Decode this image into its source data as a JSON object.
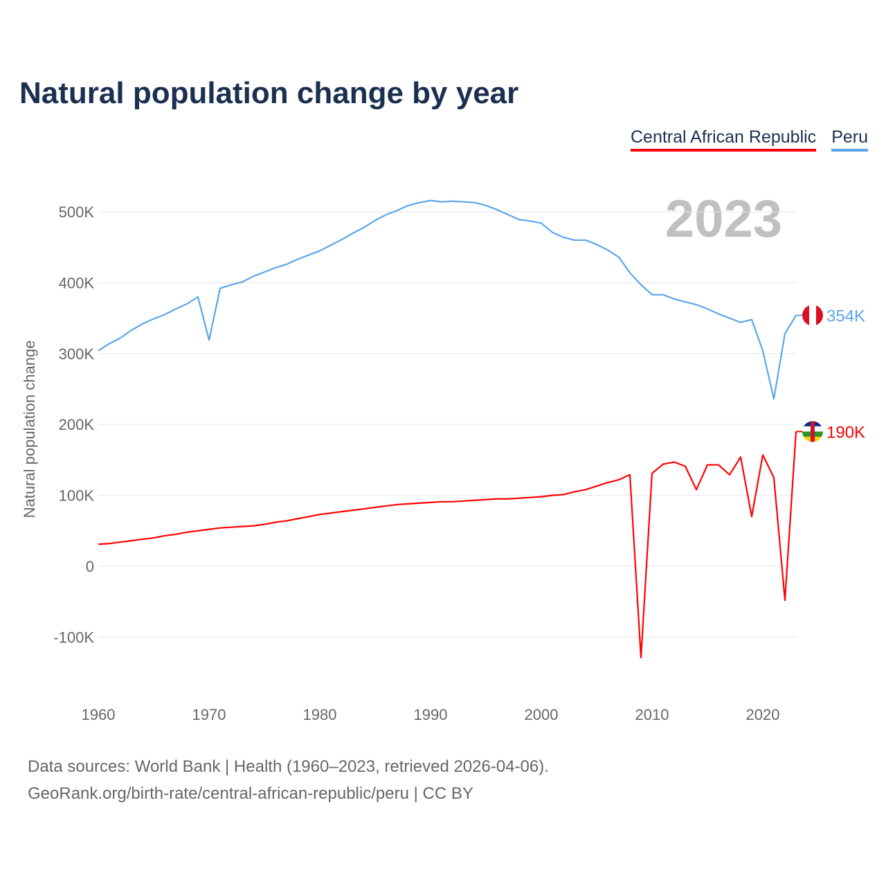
{
  "chart_data": {
    "type": "line",
    "title": "Natural population change by year",
    "ylabel": "Natural population change",
    "xlabel": "",
    "year_label": "2023",
    "xlim": [
      1960,
      2023
    ],
    "ylim": [
      -150000,
      550000
    ],
    "x_ticks": [
      1960,
      1970,
      1980,
      1990,
      2000,
      2010,
      2020
    ],
    "y_ticks": [
      {
        "value": -100000,
        "label": "-100K"
      },
      {
        "value": 0,
        "label": "0"
      },
      {
        "value": 100000,
        "label": "100K"
      },
      {
        "value": 200000,
        "label": "200K"
      },
      {
        "value": 300000,
        "label": "300K"
      },
      {
        "value": 400000,
        "label": "400K"
      },
      {
        "value": 500000,
        "label": "500K"
      }
    ],
    "grid": true,
    "legend_position": "top-right",
    "x": [
      1960,
      1961,
      1962,
      1963,
      1964,
      1965,
      1966,
      1967,
      1968,
      1969,
      1970,
      1971,
      1972,
      1973,
      1974,
      1975,
      1976,
      1977,
      1978,
      1979,
      1980,
      1981,
      1982,
      1983,
      1984,
      1985,
      1986,
      1987,
      1988,
      1989,
      1990,
      1991,
      1992,
      1993,
      1994,
      1995,
      1996,
      1997,
      1998,
      1999,
      2000,
      2001,
      2002,
      2003,
      2004,
      2005,
      2006,
      2007,
      2008,
      2009,
      2010,
      2011,
      2012,
      2013,
      2014,
      2015,
      2016,
      2017,
      2018,
      2019,
      2020,
      2021,
      2022,
      2023
    ],
    "series": [
      {
        "name": "Central African Republic",
        "color": "#ff0000",
        "end_label": "190K",
        "flag": "central-african-republic-flag",
        "values": [
          31000,
          32000,
          34000,
          36000,
          38000,
          40000,
          43000,
          45000,
          48000,
          50000,
          52000,
          54000,
          55000,
          56000,
          57000,
          59000,
          62000,
          64000,
          67000,
          70000,
          73000,
          75000,
          77000,
          79000,
          81000,
          83000,
          85000,
          87000,
          88000,
          89000,
          90000,
          91000,
          91000,
          92000,
          93000,
          94000,
          95000,
          95000,
          96000,
          97000,
          98000,
          100000,
          101000,
          105000,
          108000,
          113000,
          118000,
          122000,
          129000,
          -129000,
          131000,
          144000,
          147000,
          141000,
          108000,
          143000,
          143000,
          129000,
          154000,
          70000,
          157000,
          125000,
          -48000,
          190000
        ]
      },
      {
        "name": "Peru",
        "color": "#5ba6ea",
        "end_label": "354K",
        "flag": "peru-flag",
        "values": [
          304000,
          314000,
          322000,
          333000,
          342000,
          349000,
          355000,
          363000,
          370000,
          380000,
          319000,
          392000,
          397000,
          401000,
          409000,
          415000,
          421000,
          426000,
          433000,
          439000,
          445000,
          453000,
          461000,
          470000,
          478000,
          488000,
          496000,
          502000,
          509000,
          513000,
          516000,
          514000,
          515000,
          514000,
          513000,
          509000,
          503000,
          496000,
          489000,
          487000,
          484000,
          471000,
          464000,
          460000,
          460000,
          454000,
          446000,
          436000,
          414000,
          397000,
          383000,
          383000,
          377000,
          373000,
          369000,
          363000,
          356000,
          350000,
          344000,
          348000,
          304000,
          236000,
          328000,
          354000
        ]
      }
    ]
  },
  "footer": {
    "line1": "Data sources: World Bank | Health (1960–2023, retrieved 2026-04-06).",
    "line2": "GeoRank.org/birth-rate/central-african-republic/peru | CC BY"
  }
}
